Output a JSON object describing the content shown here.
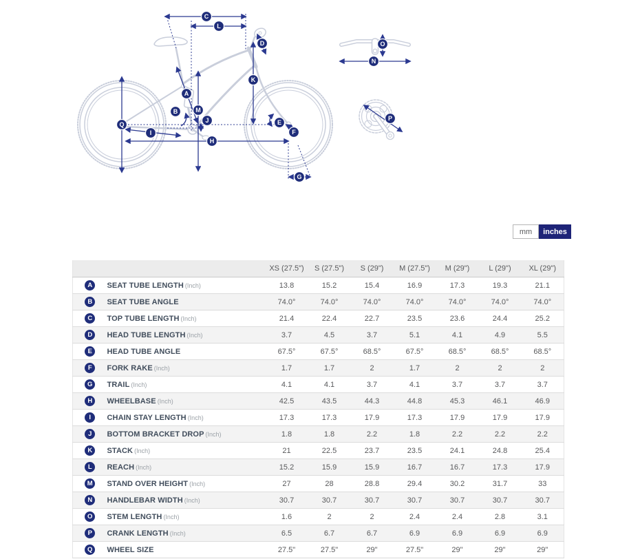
{
  "units_toggle": {
    "options": [
      {
        "label": "mm",
        "selected": false
      },
      {
        "label": "inches",
        "selected": true
      }
    ]
  },
  "diagram": {
    "badges": {
      "a": "A",
      "b": "B",
      "c": "C",
      "d": "D",
      "e": "E",
      "f": "F",
      "g": "G",
      "h": "H",
      "i": "I",
      "j": "J",
      "k": "K",
      "l": "L",
      "m": "M",
      "n": "N",
      "o": "O",
      "p": "P",
      "q": "Q"
    }
  },
  "table": {
    "columns": [
      "XS (27.5\")",
      "S (27.5\")",
      "S (29\")",
      "M (27.5\")",
      "M (29\")",
      "L (29\")",
      "XL (29\")"
    ],
    "rows": [
      {
        "badge": "A",
        "label": "SEAT TUBE LENGTH",
        "unit": "(Inch)",
        "values": [
          "13.8",
          "15.2",
          "15.4",
          "16.9",
          "17.3",
          "19.3",
          "21.1"
        ]
      },
      {
        "badge": "B",
        "label": "SEAT TUBE ANGLE",
        "unit": "",
        "values": [
          "74.0°",
          "74.0°",
          "74.0°",
          "74.0°",
          "74.0°",
          "74.0°",
          "74.0°"
        ]
      },
      {
        "badge": "C",
        "label": "TOP TUBE LENGTH",
        "unit": "(Inch)",
        "values": [
          "21.4",
          "22.4",
          "22.7",
          "23.5",
          "23.6",
          "24.4",
          "25.2"
        ]
      },
      {
        "badge": "D",
        "label": "HEAD TUBE LENGTH",
        "unit": "(Inch)",
        "values": [
          "3.7",
          "4.5",
          "3.7",
          "5.1",
          "4.1",
          "4.9",
          "5.5"
        ]
      },
      {
        "badge": "E",
        "label": "HEAD TUBE ANGLE",
        "unit": "",
        "values": [
          "67.5°",
          "67.5°",
          "68.5°",
          "67.5°",
          "68.5°",
          "68.5°",
          "68.5°"
        ]
      },
      {
        "badge": "F",
        "label": "FORK RAKE",
        "unit": "(Inch)",
        "values": [
          "1.7",
          "1.7",
          "2",
          "1.7",
          "2",
          "2",
          "2"
        ]
      },
      {
        "badge": "G",
        "label": "TRAIL",
        "unit": "(Inch)",
        "values": [
          "4.1",
          "4.1",
          "3.7",
          "4.1",
          "3.7",
          "3.7",
          "3.7"
        ]
      },
      {
        "badge": "H",
        "label": "WHEELBASE",
        "unit": "(Inch)",
        "values": [
          "42.5",
          "43.5",
          "44.3",
          "44.8",
          "45.3",
          "46.1",
          "46.9"
        ]
      },
      {
        "badge": "I",
        "label": "CHAIN STAY LENGTH",
        "unit": "(Inch)",
        "values": [
          "17.3",
          "17.3",
          "17.9",
          "17.3",
          "17.9",
          "17.9",
          "17.9"
        ]
      },
      {
        "badge": "J",
        "label": "BOTTOM BRACKET DROP",
        "unit": "(Inch)",
        "values": [
          "1.8",
          "1.8",
          "2.2",
          "1.8",
          "2.2",
          "2.2",
          "2.2"
        ]
      },
      {
        "badge": "K",
        "label": "STACK",
        "unit": "(Inch)",
        "values": [
          "21",
          "22.5",
          "23.7",
          "23.5",
          "24.1",
          "24.8",
          "25.4"
        ]
      },
      {
        "badge": "L",
        "label": "REACH",
        "unit": "(Inch)",
        "values": [
          "15.2",
          "15.9",
          "15.9",
          "16.7",
          "16.7",
          "17.3",
          "17.9"
        ]
      },
      {
        "badge": "M",
        "label": "STAND OVER HEIGHT",
        "unit": "(Inch)",
        "values": [
          "27",
          "28",
          "28.8",
          "29.4",
          "30.2",
          "31.7",
          "33"
        ]
      },
      {
        "badge": "N",
        "label": "HANDLEBAR WIDTH",
        "unit": "(Inch)",
        "values": [
          "30.7",
          "30.7",
          "30.7",
          "30.7",
          "30.7",
          "30.7",
          "30.7"
        ]
      },
      {
        "badge": "O",
        "label": "STEM LENGTH",
        "unit": "(Inch)",
        "values": [
          "1.6",
          "2",
          "2",
          "2.4",
          "2.4",
          "2.8",
          "3.1"
        ]
      },
      {
        "badge": "P",
        "label": "CRANK LENGTH",
        "unit": "(Inch)",
        "values": [
          "6.5",
          "6.7",
          "6.7",
          "6.9",
          "6.9",
          "6.9",
          "6.9"
        ]
      },
      {
        "badge": "Q",
        "label": "WHEEL SIZE",
        "unit": "",
        "values": [
          "27.5\"",
          "27.5\"",
          "29\"",
          "27.5\"",
          "29\"",
          "29\"",
          "29\""
        ]
      }
    ]
  },
  "colors": {
    "badge_navy": "#1f2d7a",
    "arrow_navy": "#2b3990",
    "toggle_selected_bg": "#1e2478",
    "frame_gray": "#c9cedb",
    "header_bg": "#ececec",
    "row_alt_bg": "#f3f3f3"
  }
}
